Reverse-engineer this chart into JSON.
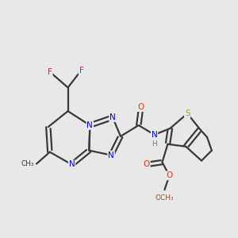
{
  "background_color": "#e8e8e8",
  "atom_colors": {
    "C": "#3a3a3a",
    "N": "#0000ee",
    "O": "#ee3300",
    "S": "#aaaa00",
    "F": "#ee00aa",
    "H": "#4a8a8a"
  },
  "bond_color": "#3a3a3a",
  "lw": 1.6,
  "figsize": [
    3.0,
    3.0
  ],
  "dpi": 100
}
